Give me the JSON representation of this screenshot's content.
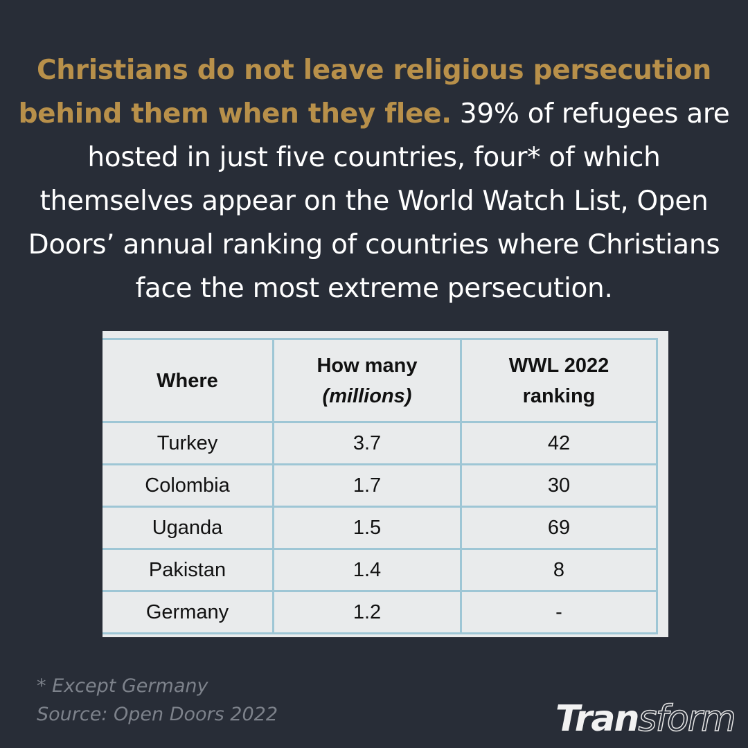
{
  "headline": {
    "accent": "Christians do not leave religious persecution behind them when they flee.",
    "body": " 39% of refugees are hosted in just five countries, four* of which themselves appear on the World Watch List, Open Doors’ annual ranking of countries where Christians face the most extreme persecution."
  },
  "table": {
    "headers": {
      "where": "Where",
      "how_many": "How many",
      "how_many_unit": "(millions)",
      "ranking": "WWL 2022",
      "ranking_sub": "ranking"
    },
    "rows": [
      {
        "where": "Turkey",
        "how_many": "3.7",
        "ranking": "42"
      },
      {
        "where": "Colombia",
        "how_many": "1.7",
        "ranking": "30"
      },
      {
        "where": "Uganda",
        "how_many": "1.5",
        "ranking": "69"
      },
      {
        "where": "Pakistan",
        "how_many": "1.4",
        "ranking": "8"
      },
      {
        "where": "Germany",
        "how_many": "1.2",
        "ranking": "-"
      }
    ]
  },
  "footnotes": {
    "note": "* Except Germany",
    "source": "Source: Open Doors 2022"
  },
  "logo": {
    "solid": "Tran",
    "outline": "sform"
  },
  "colors": {
    "background": "#282d37",
    "accent": "#b8904a",
    "table_bg": "#e9ebec",
    "table_border": "#9ec6d5"
  }
}
